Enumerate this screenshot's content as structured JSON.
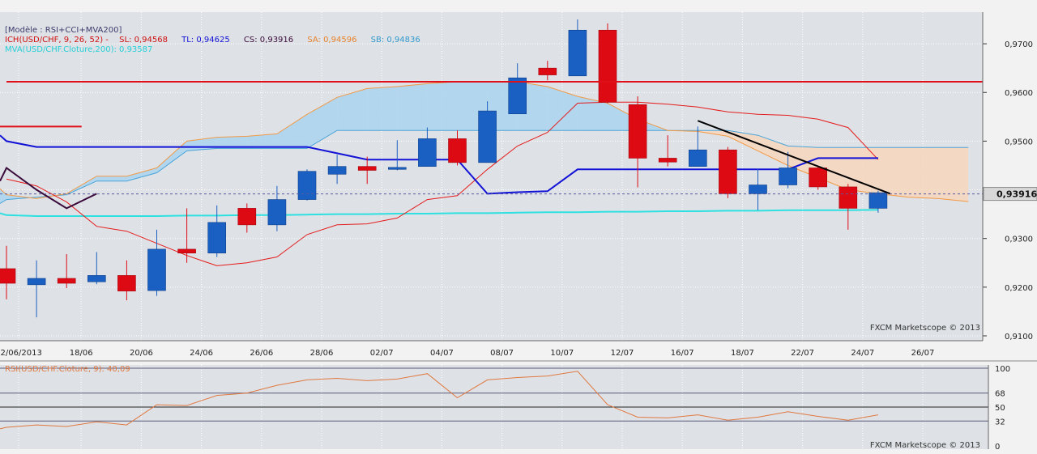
{
  "legend": {
    "model": "[Modèle : RSI+CCI+MVA200]",
    "ich": "ICH(USD/CHF, 9, 26, 52) -",
    "sl": "SL: 0,94568",
    "tl": "TL: 0,94625",
    "cs": "CS: 0,93916",
    "sa": "SA: 0,94596",
    "sb": "SB: 0,94836",
    "mva": "MVA(USD/CHF.Cloture,200): 0,93587",
    "rsi": "RSI(USD/CHF.Cloture, 9): 40,09"
  },
  "watermark": "FXCM Marketscope © 2013",
  "current_price_label": "0,93916",
  "colors": {
    "up": "#1a5fc2",
    "down": "#dd0a14",
    "sl": "#e51c1c",
    "tl": "#1212d6",
    "cs": "#3a0a3a",
    "sa": "#f29a47",
    "sb": "#4aa3d8",
    "mva": "#2ee0e0",
    "rsi": "#e07840",
    "cloud_up": "#aad3ee",
    "cloud_down": "#f7d7bd"
  },
  "chart_data": [
    {
      "type": "candlestick",
      "pair": "USD/CHF",
      "y_ticks": [
        "0,9100",
        "0,9200",
        "0,9300",
        "0,9400",
        "0,9500",
        "0,9600",
        "0,9700"
      ],
      "ylim": [
        0.909,
        0.9765
      ],
      "x_ticks": [
        "12/06/2013",
        "18/06",
        "20/06",
        "24/06",
        "26/06",
        "28/06",
        "02/07",
        "04/07",
        "08/07",
        "10/07",
        "12/07",
        "16/07",
        "18/07",
        "22/07",
        "24/07",
        "26/07"
      ],
      "candles": [
        {
          "o": 0.9238,
          "h": 0.9285,
          "l": 0.9175,
          "c": 0.9208
        },
        {
          "o": 0.9205,
          "h": 0.9255,
          "l": 0.9138,
          "c": 0.9218
        },
        {
          "o": 0.9218,
          "h": 0.9268,
          "l": 0.9198,
          "c": 0.9208
        },
        {
          "o": 0.9211,
          "h": 0.9272,
          "l": 0.9206,
          "c": 0.9224
        },
        {
          "o": 0.9224,
          "h": 0.9255,
          "l": 0.9173,
          "c": 0.9192
        },
        {
          "o": 0.9193,
          "h": 0.9318,
          "l": 0.9182,
          "c": 0.9278
        },
        {
          "o": 0.9278,
          "h": 0.9362,
          "l": 0.925,
          "c": 0.927
        },
        {
          "o": 0.927,
          "h": 0.9368,
          "l": 0.9262,
          "c": 0.9333
        },
        {
          "o": 0.9362,
          "h": 0.9372,
          "l": 0.9312,
          "c": 0.9328
        },
        {
          "o": 0.9328,
          "h": 0.9408,
          "l": 0.9315,
          "c": 0.938
        },
        {
          "o": 0.938,
          "h": 0.9442,
          "l": 0.9378,
          "c": 0.9438
        },
        {
          "o": 0.9432,
          "h": 0.9472,
          "l": 0.9412,
          "c": 0.9448
        },
        {
          "o": 0.9448,
          "h": 0.9468,
          "l": 0.9412,
          "c": 0.944
        },
        {
          "o": 0.9442,
          "h": 0.9502,
          "l": 0.944,
          "c": 0.9446
        },
        {
          "o": 0.9448,
          "h": 0.9528,
          "l": 0.9448,
          "c": 0.9505
        },
        {
          "o": 0.9505,
          "h": 0.9522,
          "l": 0.945,
          "c": 0.9456
        },
        {
          "o": 0.9456,
          "h": 0.9582,
          "l": 0.9456,
          "c": 0.9562
        },
        {
          "o": 0.9556,
          "h": 0.966,
          "l": 0.9556,
          "c": 0.963
        },
        {
          "o": 0.965,
          "h": 0.9665,
          "l": 0.9625,
          "c": 0.9636
        },
        {
          "o": 0.9634,
          "h": 0.975,
          "l": 0.9634,
          "c": 0.9728
        },
        {
          "o": 0.9728,
          "h": 0.9742,
          "l": 0.9578,
          "c": 0.958
        },
        {
          "o": 0.9575,
          "h": 0.9592,
          "l": 0.9405,
          "c": 0.9465
        },
        {
          "o": 0.9465,
          "h": 0.9512,
          "l": 0.9448,
          "c": 0.9457
        },
        {
          "o": 0.9448,
          "h": 0.953,
          "l": 0.9448,
          "c": 0.9482
        },
        {
          "o": 0.9482,
          "h": 0.9488,
          "l": 0.9383,
          "c": 0.9392
        },
        {
          "o": 0.9392,
          "h": 0.9443,
          "l": 0.9358,
          "c": 0.941
        },
        {
          "o": 0.941,
          "h": 0.9478,
          "l": 0.9403,
          "c": 0.9445
        },
        {
          "o": 0.9445,
          "h": 0.9448,
          "l": 0.94,
          "c": 0.9406
        },
        {
          "o": 0.9406,
          "h": 0.9412,
          "l": 0.9318,
          "c": 0.9362
        },
        {
          "o": 0.9362,
          "h": 0.9398,
          "l": 0.9353,
          "c": 0.9394
        }
      ],
      "lines": {
        "sl": [
          [
            0,
            0.9422
          ],
          [
            1,
            0.9408
          ],
          [
            2,
            0.9375
          ],
          [
            3,
            0.9325
          ],
          [
            4,
            0.9315
          ],
          [
            5,
            0.929
          ],
          [
            6,
            0.9265
          ],
          [
            7,
            0.9244
          ],
          [
            8,
            0.925
          ],
          [
            9,
            0.9262
          ],
          [
            10,
            0.9308
          ],
          [
            11,
            0.9328
          ],
          [
            12,
            0.933
          ],
          [
            13,
            0.9342
          ],
          [
            14,
            0.938
          ],
          [
            15,
            0.9388
          ],
          [
            16,
            0.9442
          ],
          [
            17,
            0.949
          ],
          [
            18,
            0.9518
          ],
          [
            19,
            0.9578
          ],
          [
            20,
            0.958
          ],
          [
            21,
            0.958
          ],
          [
            22,
            0.9576
          ],
          [
            23,
            0.957
          ],
          [
            24,
            0.956
          ],
          [
            25,
            0.9555
          ],
          [
            26,
            0.9553
          ],
          [
            27,
            0.9545
          ],
          [
            28,
            0.9528
          ],
          [
            29,
            0.9462
          ]
        ],
        "tl": [
          [
            -1,
            0.9512
          ],
          [
            0,
            0.95
          ],
          [
            1,
            0.9488
          ],
          [
            2,
            0.9488
          ],
          [
            3,
            0.9488
          ],
          [
            4,
            0.9488
          ],
          [
            5,
            0.9488
          ],
          [
            6,
            0.9488
          ],
          [
            7,
            0.9488
          ],
          [
            8,
            0.9488
          ],
          [
            9,
            0.9488
          ],
          [
            10,
            0.9488
          ],
          [
            11,
            0.9475
          ],
          [
            12,
            0.9462
          ],
          [
            13,
            0.9462
          ],
          [
            14,
            0.9462
          ],
          [
            15,
            0.9462
          ],
          [
            16,
            0.9392
          ],
          [
            17,
            0.9395
          ],
          [
            18,
            0.9397
          ],
          [
            19,
            0.9442
          ],
          [
            20,
            0.9442
          ],
          [
            21,
            0.9442
          ],
          [
            22,
            0.9442
          ],
          [
            23,
            0.9442
          ],
          [
            24,
            0.9442
          ],
          [
            25,
            0.9442
          ],
          [
            26,
            0.9442
          ],
          [
            27,
            0.9465
          ],
          [
            28,
            0.9465
          ],
          [
            29,
            0.9465
          ]
        ],
        "cs": [
          [
            -1,
            0.9418
          ],
          [
            0,
            0.9445
          ],
          [
            1,
            0.94
          ],
          [
            2,
            0.9362
          ],
          [
            3,
            0.9392
          ]
        ],
        "sa": [
          [
            -1,
            0.9402
          ],
          [
            0,
            0.939
          ],
          [
            1,
            0.9382
          ],
          [
            2,
            0.9392
          ],
          [
            3,
            0.9428
          ],
          [
            4,
            0.9428
          ],
          [
            5,
            0.9445
          ],
          [
            6,
            0.95
          ],
          [
            7,
            0.9508
          ],
          [
            8,
            0.951
          ],
          [
            9,
            0.9515
          ],
          [
            10,
            0.9555
          ],
          [
            11,
            0.959
          ],
          [
            12,
            0.9608
          ],
          [
            13,
            0.9612
          ],
          [
            14,
            0.9618
          ],
          [
            15,
            0.9622
          ],
          [
            16,
            0.9622
          ],
          [
            17,
            0.9622
          ],
          [
            18,
            0.9612
          ],
          [
            19,
            0.9592
          ],
          [
            20,
            0.9578
          ],
          [
            21,
            0.9545
          ],
          [
            22,
            0.9522
          ],
          [
            23,
            0.952
          ],
          [
            24,
            0.951
          ],
          [
            25,
            0.948
          ],
          [
            26,
            0.945
          ],
          [
            27,
            0.9425
          ],
          [
            28,
            0.94
          ],
          [
            29,
            0.9392
          ],
          [
            30,
            0.9385
          ],
          [
            31,
            0.9382
          ],
          [
            32,
            0.9376
          ]
        ],
        "sb": [
          [
            -1,
            0.9372
          ],
          [
            0,
            0.938
          ],
          [
            1,
            0.9385
          ],
          [
            2,
            0.939
          ],
          [
            3,
            0.9418
          ],
          [
            4,
            0.9418
          ],
          [
            5,
            0.9435
          ],
          [
            6,
            0.948
          ],
          [
            7,
            0.9485
          ],
          [
            8,
            0.9485
          ],
          [
            9,
            0.9485
          ],
          [
            10,
            0.9485
          ],
          [
            11,
            0.9522
          ],
          [
            12,
            0.9522
          ],
          [
            13,
            0.9522
          ],
          [
            14,
            0.9522
          ],
          [
            15,
            0.9522
          ],
          [
            16,
            0.9522
          ],
          [
            17,
            0.9522
          ],
          [
            18,
            0.9522
          ],
          [
            19,
            0.9522
          ],
          [
            20,
            0.9522
          ],
          [
            21,
            0.9522
          ],
          [
            22,
            0.9522
          ],
          [
            23,
            0.9522
          ],
          [
            24,
            0.9522
          ],
          [
            25,
            0.9512
          ],
          [
            26,
            0.949
          ],
          [
            27,
            0.9487
          ],
          [
            28,
            0.9487
          ],
          [
            29,
            0.9487
          ],
          [
            30,
            0.9487
          ],
          [
            31,
            0.9487
          ],
          [
            32,
            0.9487
          ]
        ],
        "mva": [
          [
            -1,
            0.9352
          ],
          [
            0,
            0.9348
          ],
          [
            1,
            0.9346
          ],
          [
            2,
            0.9346
          ],
          [
            3,
            0.9346
          ],
          [
            4,
            0.9346
          ],
          [
            5,
            0.9346
          ],
          [
            6,
            0.9347
          ],
          [
            7,
            0.9347
          ],
          [
            8,
            0.9348
          ],
          [
            9,
            0.9348
          ],
          [
            10,
            0.9349
          ],
          [
            11,
            0.935
          ],
          [
            12,
            0.935
          ],
          [
            13,
            0.9351
          ],
          [
            14,
            0.9351
          ],
          [
            15,
            0.9352
          ],
          [
            16,
            0.9352
          ],
          [
            17,
            0.9353
          ],
          [
            18,
            0.9354
          ],
          [
            19,
            0.9354
          ],
          [
            20,
            0.9355
          ],
          [
            21,
            0.9355
          ],
          [
            22,
            0.9356
          ],
          [
            23,
            0.9356
          ],
          [
            24,
            0.9357
          ],
          [
            25,
            0.9357
          ],
          [
            26,
            0.9358
          ],
          [
            27,
            0.9358
          ],
          [
            28,
            0.9358
          ],
          [
            29,
            0.9359
          ]
        ]
      },
      "resistance": {
        "from": 0,
        "to": 33,
        "value": 0.9622
      },
      "short_resistance": {
        "from": -1,
        "to": 2.5,
        "value": 0.953
      },
      "trendline": [
        [
          23,
          0.9542
        ],
        [
          29.4,
          0.9392
        ]
      ],
      "current_price": 0.93916
    },
    {
      "type": "line",
      "name": "RSI(USD/CHF.Cloture, 9)",
      "y_ticks": [
        "100",
        "68",
        "50",
        "32",
        "0"
      ],
      "ylim": [
        0,
        100
      ],
      "levels": [
        68,
        50,
        32
      ],
      "values": [
        [
          -1,
          22
        ],
        [
          0,
          24
        ],
        [
          1,
          27
        ],
        [
          2,
          25
        ],
        [
          3,
          31
        ],
        [
          4,
          27
        ],
        [
          5,
          53
        ],
        [
          6,
          52
        ],
        [
          7,
          65
        ],
        [
          8,
          68
        ],
        [
          9,
          78
        ],
        [
          10,
          85
        ],
        [
          11,
          87
        ],
        [
          12,
          84
        ],
        [
          13,
          86
        ],
        [
          14,
          93
        ],
        [
          15,
          62
        ],
        [
          16,
          85
        ],
        [
          17,
          88
        ],
        [
          18,
          90
        ],
        [
          19,
          96
        ],
        [
          20,
          53
        ],
        [
          21,
          37
        ],
        [
          22,
          36
        ],
        [
          23,
          40
        ],
        [
          24,
          33
        ],
        [
          25,
          37
        ],
        [
          26,
          44
        ],
        [
          27,
          38
        ],
        [
          28,
          33
        ],
        [
          29,
          40
        ]
      ]
    }
  ]
}
